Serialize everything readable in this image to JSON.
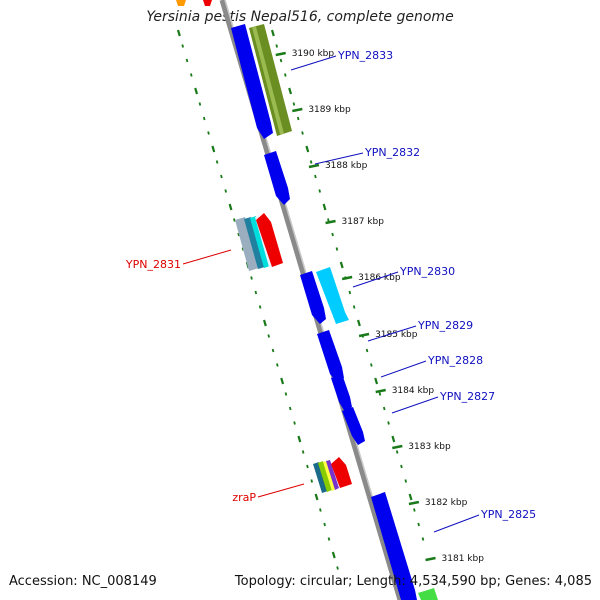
{
  "title": "Yersinia pestis Nepal516, complete genome",
  "footer": {
    "accession": "Accession: NC_008149",
    "summary": "Topology: circular; Length: 4,534,590 bp; Genes: 4,085"
  },
  "colors": {
    "backbone": "#8a8a8a",
    "tick": "#1a7a1a",
    "forward_label": "#1010c0",
    "reverse_label": "#dd0000"
  },
  "scale_labels": [
    "3190 kbp",
    "3189 kbp",
    "3188 kbp",
    "3187 kbp",
    "3186 kbp",
    "3185 kbp",
    "3184 kbp",
    "3183 kbp",
    "3182 kbp",
    "3181 kbp"
  ],
  "forward_genes": [
    "YPN_2833",
    "YPN_2832",
    "YPN_2830",
    "YPN_2829",
    "YPN_2828",
    "YPN_2827",
    "YPN_2825"
  ],
  "reverse_genes": [
    "YPN_2831",
    "zraP"
  ]
}
